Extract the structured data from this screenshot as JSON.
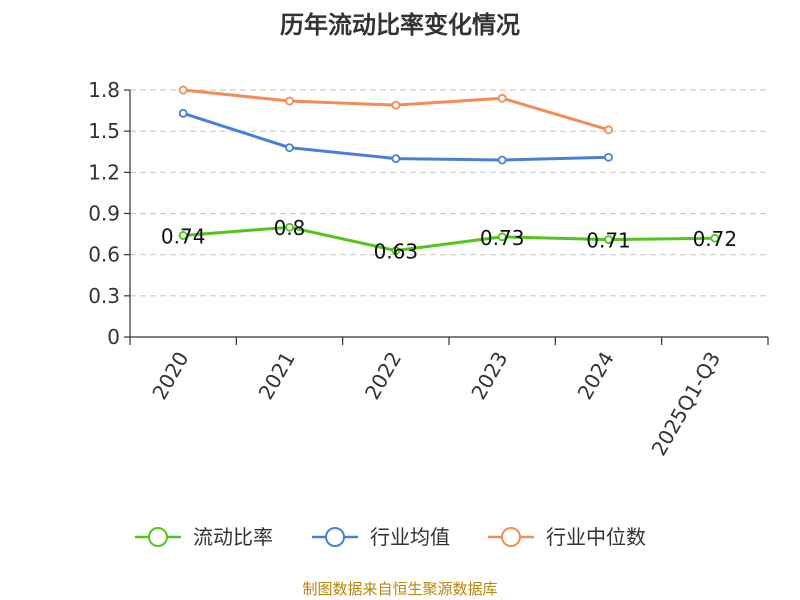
{
  "chart_data": {
    "type": "line",
    "title": "历年流动比率变化情况",
    "categories": [
      "2020",
      "2021",
      "2022",
      "2023",
      "2024",
      "2025Q1-Q3"
    ],
    "ylim": [
      0,
      1.8
    ],
    "yticks": [
      "0",
      "0.3",
      "0.6",
      "0.9",
      "1.2",
      "1.5",
      "1.8"
    ],
    "grid": true,
    "legend_position": "bottom",
    "series": [
      {
        "name": "流动比率",
        "color": "#52c41a",
        "values": [
          0.74,
          0.8,
          0.63,
          0.73,
          0.71,
          0.72
        ],
        "labels": [
          "0.74",
          "0.8",
          "0.63",
          "0.73",
          "0.71",
          "0.72"
        ]
      },
      {
        "name": "行业均值",
        "color": "#4a7fd9",
        "values": [
          1.63,
          1.38,
          1.3,
          1.29,
          1.31,
          null
        ]
      },
      {
        "name": "行业中位数",
        "color": "#f58b55",
        "values": [
          1.8,
          1.72,
          1.69,
          1.74,
          1.51,
          null
        ]
      }
    ],
    "source": "制图数据来自恒生聚源数据库"
  }
}
